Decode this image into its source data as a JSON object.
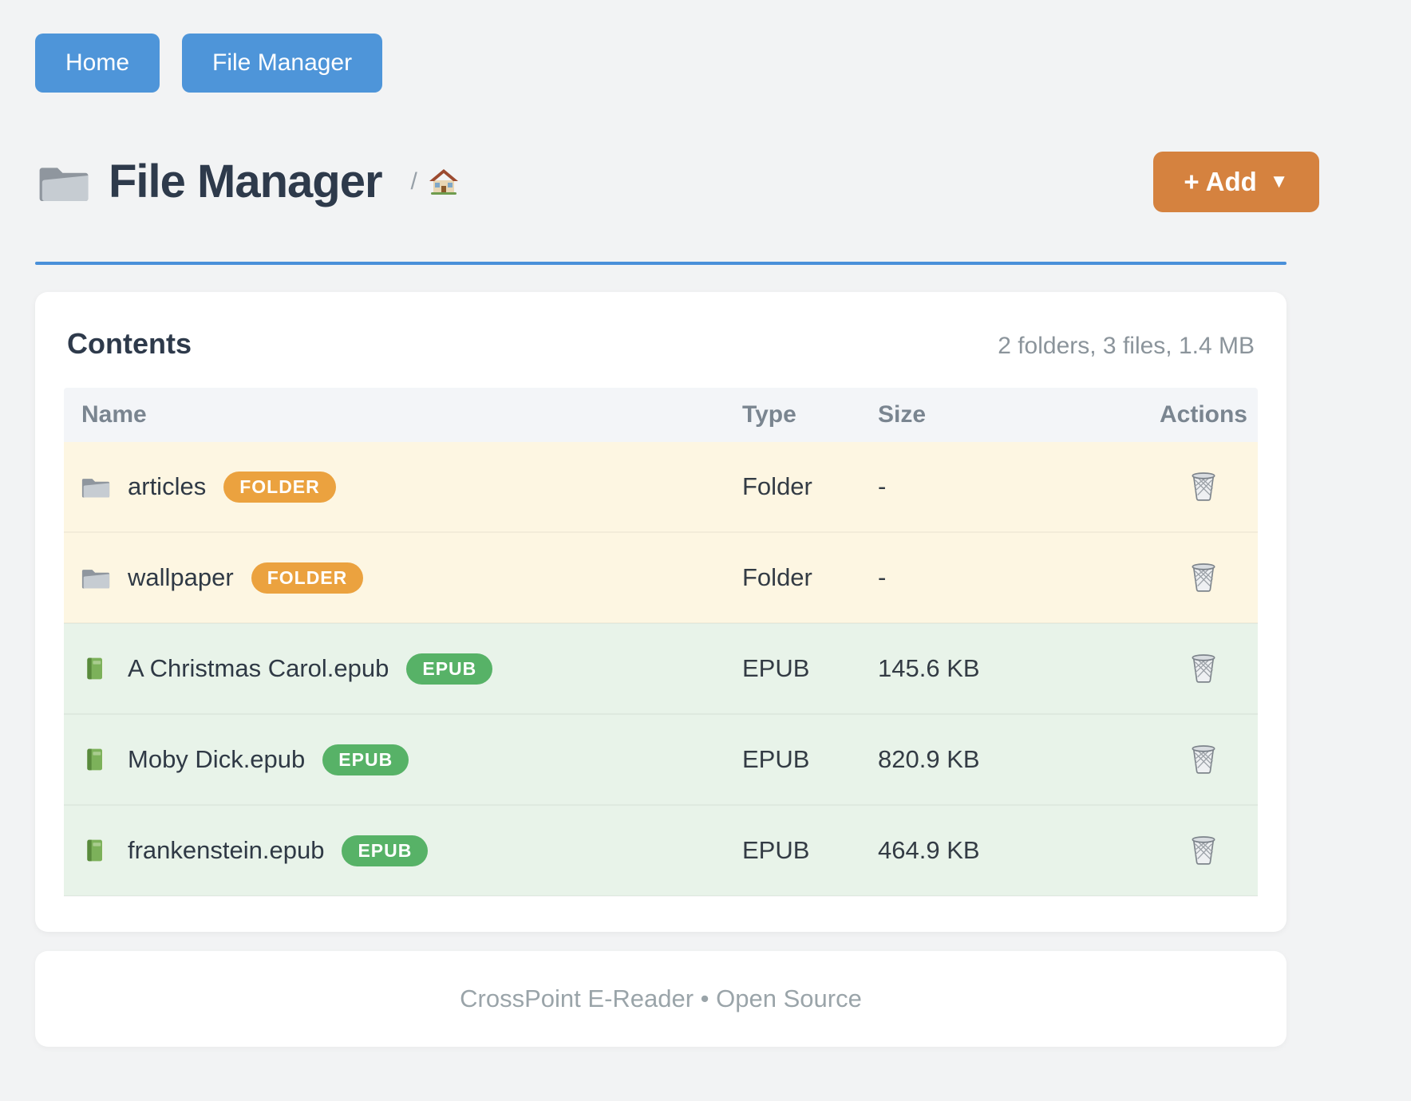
{
  "nav": {
    "home_label": "Home",
    "file_manager_label": "File Manager"
  },
  "header": {
    "icon": "folder-icon",
    "title": "File Manager",
    "breadcrumb": {
      "separator": "/",
      "home_icon": "home-icon"
    },
    "add_button": {
      "label": "+ Add",
      "caret": "▼"
    }
  },
  "contents": {
    "title": "Contents",
    "summary": "2 folders, 3 files, 1.4 MB",
    "columns": {
      "name": "Name",
      "type": "Type",
      "size": "Size",
      "actions": "Actions"
    },
    "rows": [
      {
        "kind": "folder",
        "icon": "folder-icon",
        "name": "articles",
        "badge": "FOLDER",
        "type": "Folder",
        "size": "-",
        "action_icon": "trash-icon"
      },
      {
        "kind": "folder",
        "icon": "folder-icon",
        "name": "wallpaper",
        "badge": "FOLDER",
        "type": "Folder",
        "size": "-",
        "action_icon": "trash-icon"
      },
      {
        "kind": "file",
        "icon": "book-icon",
        "name": "A Christmas Carol.epub",
        "badge": "EPUB",
        "type": "EPUB",
        "size": "145.6 KB",
        "action_icon": "trash-icon"
      },
      {
        "kind": "file",
        "icon": "book-icon",
        "name": "Moby Dick.epub",
        "badge": "EPUB",
        "type": "EPUB",
        "size": "820.9 KB",
        "action_icon": "trash-icon"
      },
      {
        "kind": "file",
        "icon": "book-icon",
        "name": "frankenstein.epub",
        "badge": "EPUB",
        "type": "EPUB",
        "size": "464.9 KB",
        "action_icon": "trash-icon"
      }
    ]
  },
  "footer": {
    "text": "CrossPoint E-Reader • Open Source"
  },
  "colors": {
    "nav_button": "#4e95d9",
    "accent_rule": "#4a90d9",
    "add_button": "#d5823f",
    "folder_badge": "#eba23f",
    "epub_badge": "#57b267",
    "folder_row_bg": "#fdf6e2",
    "file_row_bg": "#e8f3e9"
  }
}
